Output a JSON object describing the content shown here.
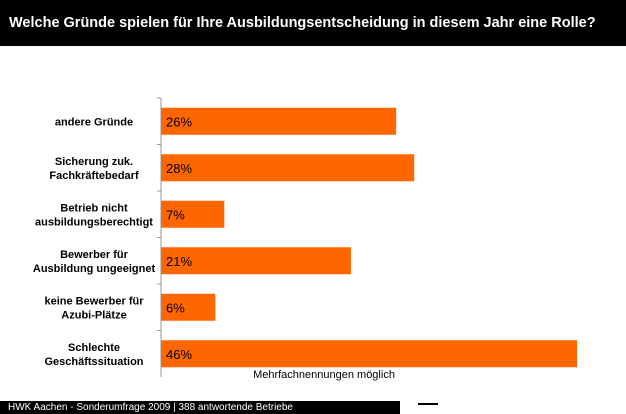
{
  "header": {
    "title": "Welche Gründe spielen für Ihre Ausbildungsentscheidung in diesem Jahr eine Rolle?"
  },
  "footer": {
    "source": "HWK Aachen - Sonderumfrage 2009 | 388 antwortende Betriebe"
  },
  "chart_data": {
    "type": "bar",
    "orientation": "horizontal",
    "title": "Welche Gründe spielen für Ihre Ausbildungsentscheidung in diesem Jahr eine Rolle?",
    "categories": [
      [
        "andere Gründe"
      ],
      [
        "Sicherung zuk.",
        "Fachkräftebedarf"
      ],
      [
        "Betrieb nicht",
        "ausbildungsberechtigt"
      ],
      [
        "Bewerber für",
        "Ausbildung ungeeignet"
      ],
      [
        "keine Bewerber für",
        "Azubi-Plätze"
      ],
      [
        "Schlechte",
        "Geschäftssituation"
      ]
    ],
    "values": [
      26,
      28,
      7,
      21,
      6,
      46
    ],
    "value_labels": [
      "26%",
      "28%",
      "7%",
      "21%",
      "6%",
      "46%"
    ],
    "note": "Mehrfachnennungen möglich",
    "unit": "%",
    "xlim": [
      0,
      50
    ],
    "grid": false,
    "legend": "none",
    "bar_color": "#ff6600",
    "axis_color": "#9a9a9a"
  }
}
